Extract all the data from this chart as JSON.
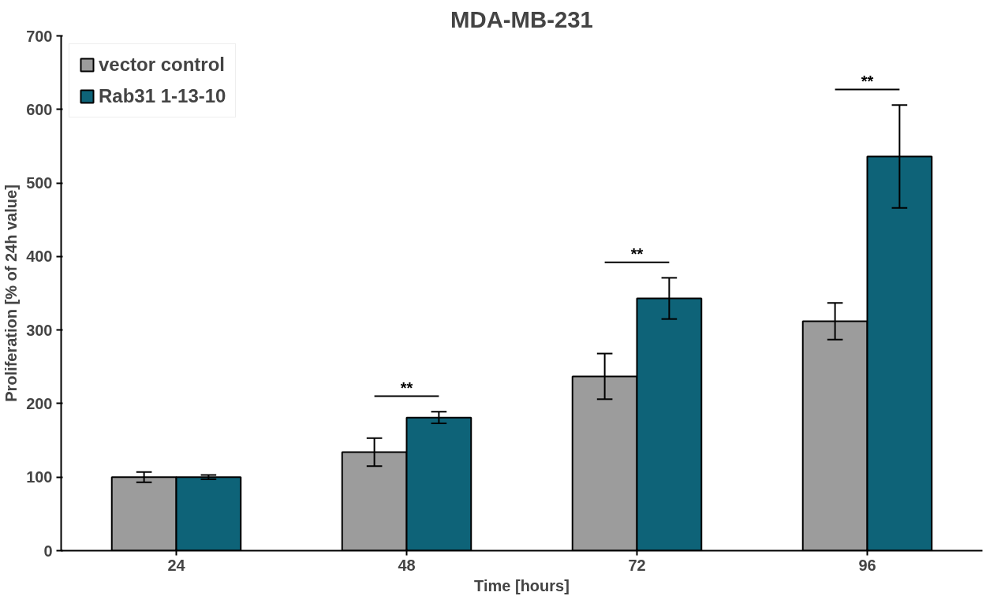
{
  "chart_data": {
    "type": "bar",
    "title": "MDA-MB-231",
    "xlabel": "Time [hours]",
    "ylabel": "Proliferation [% of 24h value]",
    "categories": [
      "24",
      "48",
      "72",
      "96"
    ],
    "series": [
      {
        "name": "vector control",
        "color": "#9c9c9c",
        "values": [
          100,
          134,
          237,
          312
        ],
        "errors": [
          7,
          19,
          31,
          25
        ]
      },
      {
        "name": "Rab31 1-13-10",
        "color": "#0e6378",
        "values": [
          100,
          181,
          343,
          536
        ],
        "errors": [
          3,
          8,
          28,
          70
        ]
      }
    ],
    "ylim": [
      0,
      700
    ],
    "yticks": [
      0,
      100,
      200,
      300,
      400,
      500,
      600,
      700
    ],
    "grid": false,
    "legend": "top left",
    "annotations": [
      "**",
      "**",
      "**"
    ]
  }
}
